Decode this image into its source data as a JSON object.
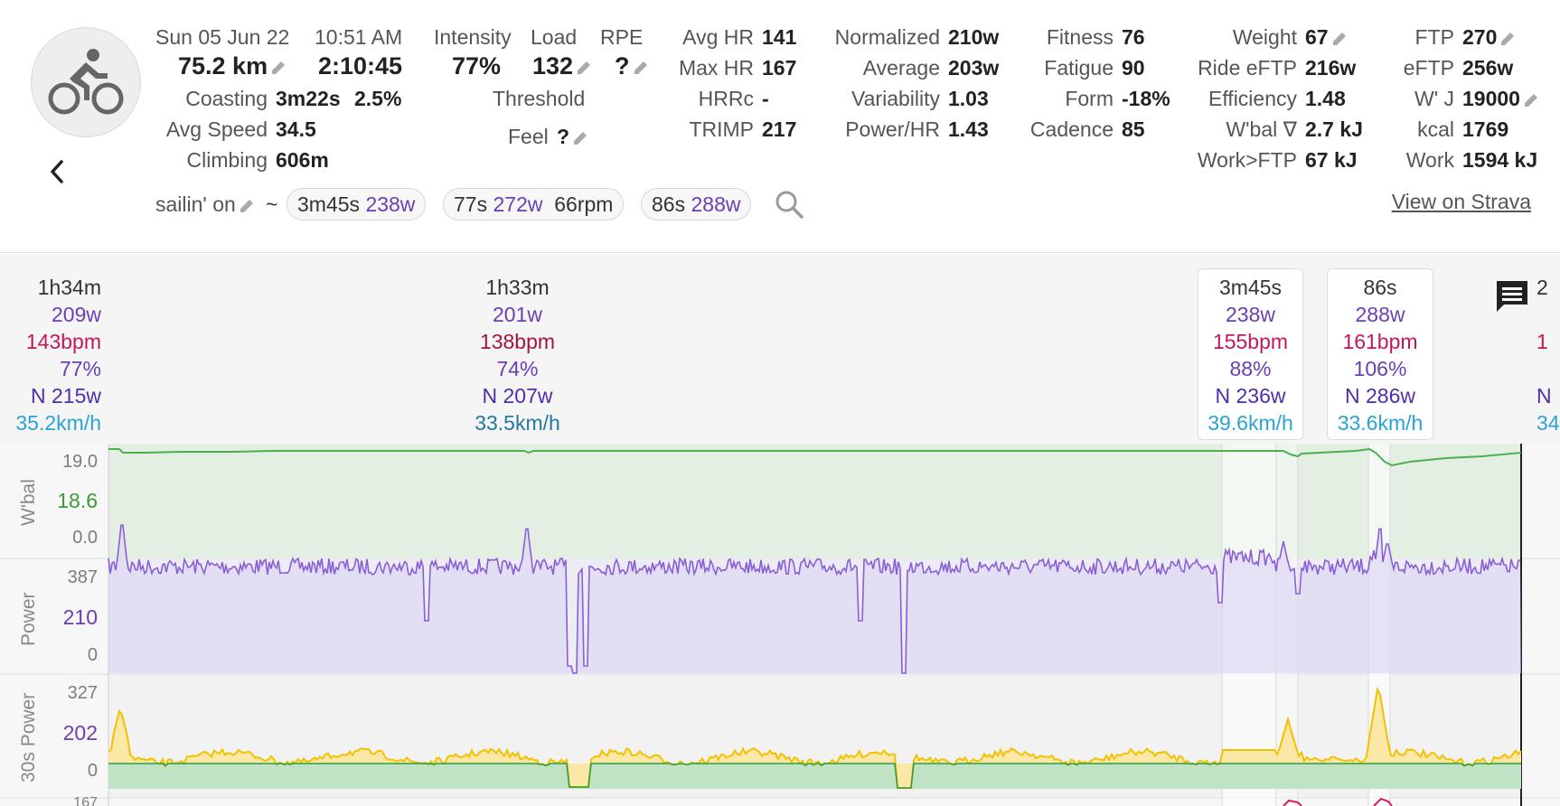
{
  "header": {
    "date": "Sun 05 Jun 22",
    "time": "10:51 AM",
    "distance": "75.2 km",
    "duration": "2:10:45",
    "coasting_label": "Coasting",
    "coasting_time": "3m22s",
    "coasting_pct": "2.5%",
    "avg_speed_label": "Avg Speed",
    "avg_speed": "34.5",
    "climbing_label": "Climbing",
    "climbing": "606m",
    "intensity_label": "Intensity",
    "intensity": "77%",
    "load_label": "Load",
    "load": "132",
    "rpe_label": "RPE",
    "rpe": "?",
    "threshold_label": "Threshold",
    "feel_label": "Feel",
    "feel": "?",
    "avg_hr_label": "Avg HR",
    "avg_hr": "141",
    "max_hr_label": "Max HR",
    "max_hr": "167",
    "hrrc_label": "HRRc",
    "hrrc": "-",
    "trimp_label": "TRIMP",
    "trimp": "217",
    "normalized_label": "Normalized",
    "normalized": "210w",
    "average_label": "Average",
    "average": "203w",
    "variability_label": "Variability",
    "variability": "1.03",
    "power_hr_label": "Power/HR",
    "power_hr": "1.43",
    "fitness_label": "Fitness",
    "fitness": "76",
    "fatigue_label": "Fatigue",
    "fatigue": "90",
    "form_label": "Form",
    "form": "-18%",
    "cadence_label": "Cadence",
    "cadence": "85",
    "weight_label": "Weight",
    "weight": "67",
    "ride_eftp_label": "Ride eFTP",
    "ride_eftp": "216w",
    "efficiency_label": "Efficiency",
    "efficiency": "1.48",
    "wbal_label": "W'bal ∇",
    "wbal": "2.7 kJ",
    "work_ftp_label": "Work>FTP",
    "work_ftp": "67 kJ",
    "ftp_label": "FTP",
    "ftp": "270",
    "eftp_label": "eFTP",
    "eftp": "256w",
    "wprime_label": "W' J",
    "wprime": "19000",
    "kcal_label": "kcal",
    "kcal": "1769",
    "work_label": "Work",
    "work": "1594 kJ",
    "activity_name": "sailin' on",
    "tilde": "~",
    "view_on_strava": "View on Strava",
    "pills": [
      {
        "dur": "3m45s",
        "w": "238w",
        "rpm": ""
      },
      {
        "dur": "77s",
        "w": "272w",
        "rpm": "66rpm"
      },
      {
        "dur": "86s",
        "w": "288w",
        "rpm": ""
      }
    ]
  },
  "intervals": [
    {
      "dur": "1h34m",
      "power": "209w",
      "hr": "143bpm",
      "pct": "77%",
      "np": "N 215w",
      "speed": "35.2km/h"
    },
    {
      "dur": "1h33m",
      "power": "201w",
      "hr": "138bpm",
      "pct": "74%",
      "np": "N 207w",
      "speed": "33.5km/h"
    },
    {
      "dur": "3m45s",
      "power": "238w",
      "hr": "155bpm",
      "pct": "88%",
      "np": "N 236w",
      "speed": "39.6km/h"
    },
    {
      "dur": "86s",
      "power": "288w",
      "hr": "161bpm",
      "pct": "106%",
      "np": "N 286w",
      "speed": "33.6km/h"
    },
    {
      "dur": "2",
      "power": "",
      "hr": "1",
      "pct": "",
      "np": "N",
      "speed": "34"
    }
  ],
  "charts": {
    "wbal": {
      "title": "W'bal",
      "ticks": [
        "19.0",
        "18.6",
        "0.0"
      ]
    },
    "power": {
      "title": "Power",
      "ticks": [
        "387",
        "210",
        "0"
      ]
    },
    "p30": {
      "title": "30s Power",
      "ticks": [
        "327",
        "202",
        "0"
      ]
    },
    "next": {
      "ticks": [
        "167"
      ]
    }
  },
  "colors": {
    "power_line": "#8a5fd6",
    "wbal_line": "#4caf50",
    "hr_text": "#c2185b",
    "speed_text": "#29a3d6",
    "accent_purple": "#6a3fb5"
  }
}
